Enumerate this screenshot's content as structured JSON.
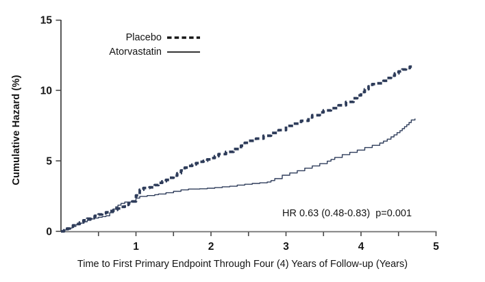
{
  "figure": {
    "background": "#ffffff",
    "text_color": "#141414"
  },
  "chart_data": {
    "type": "line",
    "subtype": "step-survival",
    "title": "",
    "xlabel": "Time to First Primary Endpoint Through Four (4) Years of Follow-up (Years)",
    "ylabel": "Cumulative Hazard (%)",
    "xlim": [
      0,
      5
    ],
    "ylim": [
      0,
      15
    ],
    "x_tick_labels": [
      "1",
      "2",
      "3",
      "4",
      "5"
    ],
    "x_ticks_labeled": [
      1,
      2,
      3,
      4,
      5
    ],
    "x_ticks_minor": [
      0.5,
      1,
      1.5,
      2,
      2.5,
      3,
      3.5,
      4,
      4.5,
      5
    ],
    "y_ticks": [
      0,
      5,
      10,
      15
    ],
    "y_tick_labels": [
      "0",
      "5",
      "10",
      "15"
    ],
    "grid": false,
    "legend_position": "top-left-inside",
    "annotation": "HR 0.63 (0.48-0.83)  p=0.001",
    "axis_color": "#6e6e6e",
    "tick_color": "#474747",
    "curve_color": "#2e3c5a",
    "series": [
      {
        "name": "Placebo",
        "style": "dashed",
        "color": "#2e3c5a",
        "points": [
          [
            0,
            0
          ],
          [
            0.04,
            0.08
          ],
          [
            0.08,
            0.2
          ],
          [
            0.12,
            0.32
          ],
          [
            0.16,
            0.42
          ],
          [
            0.2,
            0.52
          ],
          [
            0.25,
            0.63
          ],
          [
            0.3,
            0.78
          ],
          [
            0.35,
            0.9
          ],
          [
            0.4,
            1.0
          ],
          [
            0.45,
            1.1
          ],
          [
            0.5,
            1.2
          ],
          [
            0.55,
            1.28
          ],
          [
            0.6,
            1.35
          ],
          [
            0.65,
            1.44
          ],
          [
            0.7,
            1.52
          ],
          [
            0.75,
            1.62
          ],
          [
            0.8,
            1.74
          ],
          [
            0.85,
            1.88
          ],
          [
            0.9,
            2.0
          ],
          [
            0.95,
            2.12
          ],
          [
            1.0,
            2.55
          ],
          [
            1.05,
            2.95
          ],
          [
            1.1,
            3.08
          ],
          [
            1.18,
            3.12
          ],
          [
            1.25,
            3.28
          ],
          [
            1.3,
            3.44
          ],
          [
            1.35,
            3.55
          ],
          [
            1.4,
            3.65
          ],
          [
            1.45,
            3.8
          ],
          [
            1.5,
            3.95
          ],
          [
            1.55,
            4.12
          ],
          [
            1.6,
            4.32
          ],
          [
            1.65,
            4.52
          ],
          [
            1.7,
            4.64
          ],
          [
            1.75,
            4.74
          ],
          [
            1.8,
            4.84
          ],
          [
            1.85,
            4.93
          ],
          [
            1.9,
            5.0
          ],
          [
            1.95,
            5.1
          ],
          [
            2.0,
            5.2
          ],
          [
            2.05,
            5.33
          ],
          [
            2.1,
            5.48
          ],
          [
            2.2,
            5.64
          ],
          [
            2.3,
            5.84
          ],
          [
            2.4,
            6.08
          ],
          [
            2.45,
            6.28
          ],
          [
            2.5,
            6.42
          ],
          [
            2.6,
            6.58
          ],
          [
            2.7,
            6.78
          ],
          [
            2.8,
            6.98
          ],
          [
            2.9,
            7.18
          ],
          [
            3.0,
            7.48
          ],
          [
            3.1,
            7.64
          ],
          [
            3.2,
            7.84
          ],
          [
            3.3,
            8.08
          ],
          [
            3.35,
            8.24
          ],
          [
            3.45,
            8.44
          ],
          [
            3.5,
            8.58
          ],
          [
            3.6,
            8.74
          ],
          [
            3.7,
            8.94
          ],
          [
            3.8,
            9.18
          ],
          [
            3.9,
            9.44
          ],
          [
            3.95,
            9.64
          ],
          [
            4.0,
            9.88
          ],
          [
            4.05,
            10.08
          ],
          [
            4.1,
            10.28
          ],
          [
            4.15,
            10.44
          ],
          [
            4.2,
            10.5
          ],
          [
            4.3,
            10.68
          ],
          [
            4.35,
            10.88
          ],
          [
            4.4,
            11.04
          ],
          [
            4.45,
            11.2
          ],
          [
            4.5,
            11.34
          ],
          [
            4.55,
            11.48
          ],
          [
            4.6,
            11.58
          ],
          [
            4.65,
            11.68
          ],
          [
            4.68,
            11.72
          ]
        ]
      },
      {
        "name": "Atorvastatin",
        "style": "solid",
        "color": "#2e3c5a",
        "points": [
          [
            0,
            0
          ],
          [
            0.05,
            0.1
          ],
          [
            0.1,
            0.24
          ],
          [
            0.15,
            0.35
          ],
          [
            0.2,
            0.48
          ],
          [
            0.25,
            0.58
          ],
          [
            0.3,
            0.68
          ],
          [
            0.35,
            0.78
          ],
          [
            0.4,
            0.88
          ],
          [
            0.45,
            0.94
          ],
          [
            0.5,
            1.0
          ],
          [
            0.55,
            1.05
          ],
          [
            0.6,
            1.1
          ],
          [
            0.65,
            1.32
          ],
          [
            0.7,
            1.58
          ],
          [
            0.73,
            1.74
          ],
          [
            0.76,
            1.86
          ],
          [
            0.8,
            1.98
          ],
          [
            0.85,
            2.08
          ],
          [
            0.95,
            2.14
          ],
          [
            1.0,
            2.36
          ],
          [
            1.05,
            2.48
          ],
          [
            1.15,
            2.54
          ],
          [
            1.25,
            2.6
          ],
          [
            1.3,
            2.65
          ],
          [
            1.4,
            2.74
          ],
          [
            1.5,
            2.84
          ],
          [
            1.6,
            2.94
          ],
          [
            1.7,
            3.0
          ],
          [
            1.85,
            3.02
          ],
          [
            1.95,
            3.06
          ],
          [
            2.05,
            3.1
          ],
          [
            2.15,
            3.16
          ],
          [
            2.25,
            3.2
          ],
          [
            2.35,
            3.28
          ],
          [
            2.45,
            3.34
          ],
          [
            2.55,
            3.4
          ],
          [
            2.65,
            3.44
          ],
          [
            2.75,
            3.5
          ],
          [
            2.8,
            3.6
          ],
          [
            2.85,
            3.74
          ],
          [
            2.95,
            3.98
          ],
          [
            3.05,
            4.14
          ],
          [
            3.15,
            4.3
          ],
          [
            3.25,
            4.48
          ],
          [
            3.35,
            4.64
          ],
          [
            3.45,
            4.8
          ],
          [
            3.55,
            4.98
          ],
          [
            3.6,
            5.1
          ],
          [
            3.65,
            5.24
          ],
          [
            3.75,
            5.44
          ],
          [
            3.85,
            5.6
          ],
          [
            3.95,
            5.76
          ],
          [
            4.05,
            5.94
          ],
          [
            4.15,
            6.1
          ],
          [
            4.25,
            6.26
          ],
          [
            4.3,
            6.4
          ],
          [
            4.35,
            6.54
          ],
          [
            4.4,
            6.7
          ],
          [
            4.44,
            6.84
          ],
          [
            4.48,
            7.0
          ],
          [
            4.52,
            7.14
          ],
          [
            4.55,
            7.28
          ],
          [
            4.58,
            7.42
          ],
          [
            4.61,
            7.56
          ],
          [
            4.64,
            7.72
          ],
          [
            4.67,
            7.9
          ],
          [
            4.72,
            8.0
          ]
        ]
      }
    ]
  }
}
